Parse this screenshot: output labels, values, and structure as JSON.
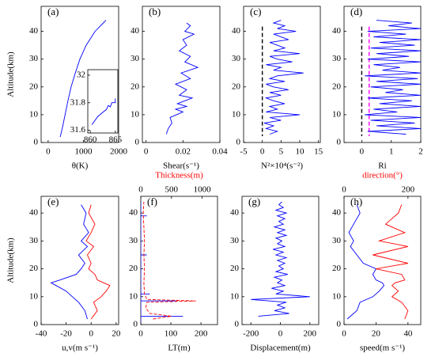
{
  "chart_data": [
    {
      "type": "line",
      "label": "(a)",
      "xlabel": "θ(K)",
      "ylabel": "Altitude(km)",
      "xlim": [
        -200,
        2000
      ],
      "xticks": [
        0,
        1000,
        2000
      ],
      "ylim": [
        0,
        49
      ],
      "yticks": [
        0,
        10,
        20,
        30,
        40
      ],
      "series": [
        {
          "color": "#0000ff",
          "x": [
            340,
            400,
            480,
            560,
            650,
            770,
            900,
            1080,
            1330,
            1640
          ],
          "y": [
            2,
            5,
            10,
            15,
            20,
            25,
            30,
            35,
            40,
            44
          ]
        }
      ],
      "inset": {
        "xlim": [
          859.5,
          865.5
        ],
        "xticks": [
          860,
          865
        ],
        "ylim": [
          31.58,
          32.04
        ],
        "yticks": [
          31.6,
          31.8,
          32
        ],
        "series": [
          {
            "color": "#0000ff",
            "x": [
              860.3,
              861.5,
              862.5,
              863.2,
              863.6,
              864,
              864.3,
              865,
              865
            ],
            "y": [
              31.64,
              31.7,
              31.73,
              31.75,
              31.78,
              31.77,
              31.8,
              31.8,
              31.83
            ]
          }
        ]
      }
    },
    {
      "type": "line",
      "label": "(b)",
      "xlabel": "Shear(s⁻¹)",
      "xlim": [
        -0.002,
        0.04
      ],
      "xticks": [
        0,
        0.02,
        0.04
      ],
      "ylim": [
        0,
        49
      ],
      "yticks": [
        0,
        10,
        20,
        30,
        40
      ],
      "series": [
        {
          "color": "#0000ff",
          "x": [
            0.011,
            0.012,
            0.014,
            0.013,
            0.02,
            0.016,
            0.022,
            0.017,
            0.025,
            0.018,
            0.022,
            0.016,
            0.024,
            0.019,
            0.028,
            0.021,
            0.024,
            0.018,
            0.022,
            0.02,
            0.026,
            0.021,
            0.024,
            0.022
          ],
          "y": [
            3,
            5,
            7,
            9,
            11,
            12,
            13,
            14,
            16,
            17,
            19,
            21,
            23,
            25,
            27,
            29,
            31,
            33,
            35,
            37,
            39,
            40,
            42,
            43
          ]
        }
      ]
    },
    {
      "type": "line",
      "label": "(c)",
      "xlabel": "N²×10⁴(s⁻²)",
      "xlim": [
        -5,
        15.5
      ],
      "xticks": [
        -5,
        0,
        5,
        10,
        15
      ],
      "ylim": [
        0,
        49
      ],
      "yticks": [
        0,
        10,
        20,
        30,
        40
      ],
      "vlines": [
        {
          "x": 0,
          "color": "#000000"
        }
      ],
      "series": [
        {
          "color": "#0000ff",
          "x": [
            2,
            4,
            1,
            3,
            0.5,
            5,
            2,
            10,
            1,
            4,
            2,
            6,
            3,
            1,
            5,
            2,
            7,
            3,
            1,
            6,
            2,
            4,
            11,
            3,
            5,
            1,
            8,
            4,
            2,
            10,
            3,
            6,
            4,
            2,
            7,
            5,
            3,
            9,
            4,
            6,
            3,
            5
          ],
          "y": [
            3,
            4,
            5,
            6,
            7,
            8,
            9,
            10,
            11,
            12,
            13,
            14,
            15,
            16,
            17,
            18,
            19,
            20,
            21,
            22,
            23,
            24,
            25,
            26,
            27,
            28,
            29,
            30,
            31,
            32,
            33,
            34,
            35,
            36,
            37,
            38,
            39,
            40,
            41,
            42,
            43,
            44
          ]
        }
      ]
    },
    {
      "type": "line",
      "label": "(d)",
      "xlabel": "Ri",
      "xlim": [
        -0.6,
        2
      ],
      "xticks": [
        0,
        1,
        2
      ],
      "ylim": [
        0,
        49
      ],
      "yticks": [
        0,
        10,
        20,
        30,
        40
      ],
      "vlines": [
        {
          "x": 0,
          "color": "#000000"
        },
        {
          "x": 0.25,
          "color": "#ff00ff"
        }
      ],
      "series": [
        {
          "color": "#0000ff",
          "x": [
            1.5,
            0.2,
            2,
            0.5,
            1.8,
            0.3,
            2,
            0.1,
            1.2,
            0.4,
            2,
            0.6,
            1.7,
            0.2,
            2,
            0.8,
            1.4,
            0.3,
            2,
            0.5,
            1.9,
            0.1,
            2,
            0.7,
            1.3,
            0.4,
            2,
            0.2,
            1.6,
            0.5,
            2,
            0.3,
            1.8,
            0.6,
            2,
            0.4,
            1.5,
            0.2,
            2,
            0.9,
            1.7,
            0.5
          ],
          "y": [
            3,
            4,
            5,
            6,
            7,
            8,
            9,
            10,
            11,
            12,
            13,
            14,
            15,
            16,
            17,
            18,
            19,
            20,
            21,
            22,
            23,
            24,
            25,
            26,
            27,
            28,
            29,
            30,
            31,
            32,
            33,
            34,
            35,
            36,
            37,
            38,
            39,
            40,
            41,
            42,
            43,
            44
          ]
        }
      ]
    },
    {
      "type": "line",
      "label": "(e)",
      "xlabel": "u,v(m s⁻¹)",
      "ylabel": "Altitude(km)",
      "xlim": [
        -40,
        22
      ],
      "xticks": [
        -40,
        -20,
        0,
        20
      ],
      "ylim": [
        0,
        46
      ],
      "yticks": [
        0,
        10,
        20,
        30,
        40
      ],
      "series": [
        {
          "color": "#0000ff",
          "x": [
            -3,
            -5,
            -10,
            -15,
            -20,
            -28,
            -32,
            -25,
            -12,
            -8,
            -5,
            -10,
            -3,
            -8,
            -2,
            -6,
            -4,
            -8
          ],
          "y": [
            2,
            5,
            8,
            10,
            12,
            14,
            15,
            16,
            18,
            20,
            22,
            25,
            28,
            30,
            33,
            36,
            40,
            43
          ]
        },
        {
          "color": "#ff0000",
          "x": [
            0,
            5,
            2,
            8,
            12,
            15,
            10,
            5,
            3,
            -2,
            0,
            -3,
            2,
            -4,
            0,
            3,
            -2,
            0
          ],
          "y": [
            2,
            5,
            8,
            10,
            12,
            14,
            15,
            16,
            18,
            20,
            22,
            25,
            28,
            30,
            33,
            36,
            40,
            43
          ]
        }
      ]
    },
    {
      "type": "line",
      "label": "(f)",
      "xlabel": "LT(m)",
      "x2label": "Thickness(m)",
      "xlim": [
        0,
        255
      ],
      "xticks": [
        0,
        100,
        200
      ],
      "x2lim": [
        0,
        1250
      ],
      "x2ticks": [
        0,
        500,
        1000
      ],
      "ylim": [
        0,
        46
      ],
      "yticks": [
        0,
        10,
        20,
        30,
        40
      ],
      "series": [
        {
          "color": "#0000ff",
          "x": [
            0,
            0,
            140,
            0,
            0,
            0,
            120,
            0,
            0,
            30,
            0,
            0,
            0,
            20,
            0,
            0,
            0,
            20,
            0,
            0
          ],
          "y": [
            1,
            3,
            3,
            3,
            5,
            8.5,
            8.5,
            8.5,
            11,
            11,
            11,
            15,
            25,
            25,
            25,
            35,
            39,
            39,
            39,
            44
          ]
        },
        {
          "color": "#ff0000",
          "dash": true,
          "axis": "x2",
          "x": [
            200,
            500,
            150,
            80,
            100,
            900,
            100,
            60,
            50,
            60,
            50,
            60,
            50,
            40,
            50
          ],
          "y": [
            2,
            3,
            4,
            6,
            8,
            8.5,
            9,
            11,
            15,
            20,
            25,
            30,
            35,
            40,
            44
          ]
        }
      ]
    },
    {
      "type": "line",
      "label": "(g)",
      "xlabel": "Displacement(m)",
      "xlim": [
        -260,
        260
      ],
      "xticks": [
        -200,
        0,
        200
      ],
      "ylim": [
        0,
        46
      ],
      "yticks": [
        0,
        10,
        20,
        30,
        40
      ],
      "series": [
        {
          "color": "#0000ff",
          "x": [
            -150,
            60,
            -40,
            30,
            -20,
            40,
            -200,
            200,
            -30,
            20,
            -60,
            30,
            -20,
            10,
            -40,
            50,
            -30,
            20,
            -10,
            30,
            -20,
            40,
            -30,
            20,
            -50,
            30,
            -20,
            10,
            -30,
            40,
            -20,
            30,
            -40,
            20,
            -10,
            30,
            -20,
            40,
            -30,
            20,
            -10,
            10
          ],
          "y": [
            3,
            4,
            5,
            6,
            7,
            8,
            9,
            10,
            11,
            12,
            13,
            14,
            15,
            16,
            17,
            18,
            19,
            20,
            21,
            22,
            23,
            24,
            25,
            26,
            27,
            28,
            29,
            30,
            31,
            32,
            33,
            34,
            35,
            36,
            37,
            38,
            39,
            40,
            41,
            42,
            43,
            44
          ]
        }
      ]
    },
    {
      "type": "line",
      "label": "(h)",
      "xlabel": "speed(m s⁻¹)",
      "x2label": "direction(°)",
      "xlim": [
        0,
        48
      ],
      "xticks": [
        0,
        20,
        40
      ],
      "x2lim": [
        0,
        240
      ],
      "x2ticks": [
        0,
        200
      ],
      "ylim": [
        0,
        46
      ],
      "yticks": [
        0,
        10,
        20,
        30,
        40
      ],
      "series": [
        {
          "color": "#0000ff",
          "x": [
            2,
            8,
            10,
            18,
            22,
            25,
            24,
            20,
            18,
            20,
            12,
            8,
            4,
            6,
            3,
            6,
            10,
            8
          ],
          "y": [
            2,
            5,
            8,
            10,
            12,
            14,
            15,
            16,
            18,
            20,
            22,
            25,
            28,
            30,
            33,
            36,
            40,
            43
          ]
        },
        {
          "color": "#ff0000",
          "axis": "x2",
          "x": [
            190,
            200,
            180,
            150,
            170,
            150,
            160,
            190,
            180,
            100,
            200,
            90,
            200,
            110,
            190,
            130,
            170,
            180
          ],
          "y": [
            2,
            5,
            8,
            10,
            12,
            14,
            15,
            16,
            18,
            20,
            22,
            25,
            28,
            30,
            33,
            36,
            40,
            43
          ]
        }
      ]
    }
  ]
}
